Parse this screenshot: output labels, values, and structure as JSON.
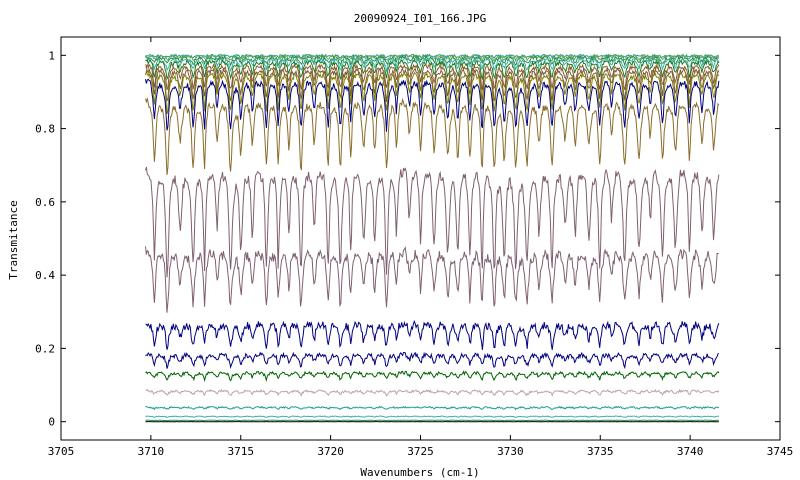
{
  "chart_data": {
    "type": "line",
    "title": "20090924_I01_166.JPG",
    "xlabel": "Wavenumbers (cm-1)",
    "ylabel": "Transmitance",
    "xlim": [
      3705,
      3745
    ],
    "ylim": [
      -0.05,
      1.05
    ],
    "x_ticks": [
      3705,
      3710,
      3715,
      3720,
      3725,
      3730,
      3735,
      3740,
      3745
    ],
    "y_ticks": [
      0,
      0.2,
      0.4,
      0.6,
      0.8,
      1
    ],
    "y_tick_labels": [
      "0",
      "0.2",
      "0.4",
      "0.6",
      "0.8",
      "1"
    ],
    "x_range_data": [
      3709.7,
      3741.6
    ],
    "grid": false,
    "legend": "none",
    "series": [
      {
        "color": "#1b9e8e",
        "baseline": 1.0,
        "depth": 0.005,
        "noise": 0.003
      },
      {
        "color": "#6aa84f",
        "baseline": 0.998,
        "depth": 0.01,
        "noise": 0.004
      },
      {
        "color": "#2e8b57",
        "baseline": 0.995,
        "depth": 0.02,
        "noise": 0.005
      },
      {
        "color": "#3cb3a8",
        "baseline": 0.99,
        "depth": 0.03,
        "noise": 0.005
      },
      {
        "color": "#1e7b1e",
        "baseline": 0.985,
        "depth": 0.05,
        "noise": 0.006
      },
      {
        "color": "#8b5a2b",
        "baseline": 0.975,
        "depth": 0.07,
        "noise": 0.006
      },
      {
        "color": "#7a5c3a",
        "baseline": 0.965,
        "depth": 0.09,
        "noise": 0.007
      },
      {
        "color": "#808000",
        "baseline": 0.955,
        "depth": 0.11,
        "noise": 0.007
      },
      {
        "color": "#000080",
        "baseline": 0.935,
        "depth": 0.14,
        "noise": 0.008
      },
      {
        "color": "#8b6d2b",
        "baseline": 0.88,
        "depth": 0.2,
        "noise": 0.01
      },
      {
        "color": "#7f6070",
        "baseline": 0.7,
        "depth": 0.3,
        "noise": 0.015
      },
      {
        "color": "#7f6070",
        "baseline": 0.47,
        "depth": 0.16,
        "noise": 0.015
      },
      {
        "color": "#000080",
        "baseline": 0.27,
        "depth": 0.07,
        "noise": 0.01
      },
      {
        "color": "#000080",
        "baseline": 0.185,
        "depth": 0.035,
        "noise": 0.006
      },
      {
        "color": "#006400",
        "baseline": 0.135,
        "depth": 0.02,
        "noise": 0.004
      },
      {
        "color": "#c0a0b0",
        "baseline": 0.085,
        "depth": 0.012,
        "noise": 0.003
      },
      {
        "color": "#1b9e8e",
        "baseline": 0.04,
        "depth": 0.006,
        "noise": 0.002
      },
      {
        "color": "#3cb3a8",
        "baseline": 0.015,
        "depth": 0.003,
        "noise": 0.001
      },
      {
        "color": "#2e8b57",
        "baseline": 0.004,
        "depth": 0.001,
        "noise": 0.0005
      },
      {
        "color": "#000000",
        "baseline": 0.0,
        "depth": 0.0,
        "noise": 0.0003
      }
    ]
  }
}
